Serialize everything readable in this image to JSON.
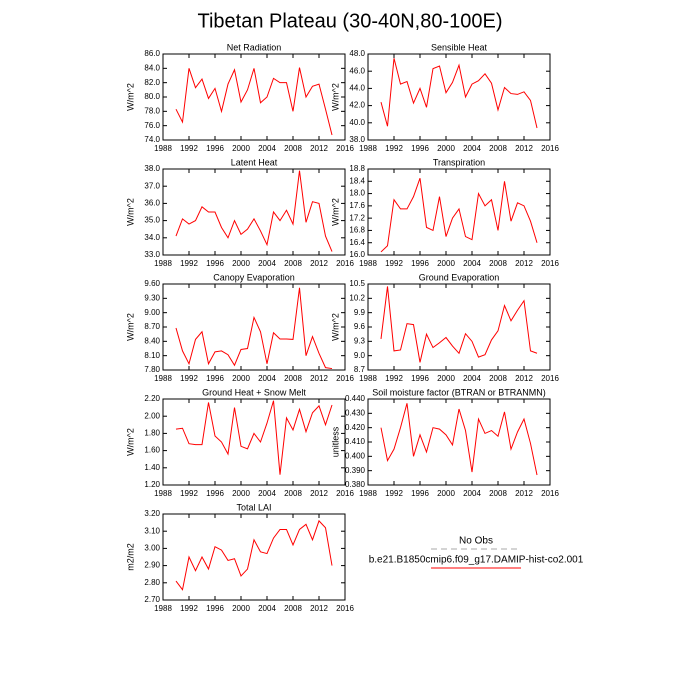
{
  "title": "Tibetan Plateau (30-40N,80-100E)",
  "legend": {
    "entries": [
      {
        "name": "No Obs",
        "color": "#aaaaaa",
        "dash": true
      },
      {
        "name": "b.e21.B1850cmip6.f09_g17.DAMIP-hist-co2.001",
        "color": "#ff0000",
        "dash": false
      }
    ]
  },
  "chart_data": [
    {
      "type": "line",
      "title": "Net Radiation",
      "y_label": "W/m^2",
      "color": "#ff0000",
      "x": [
        1990,
        1991,
        1992,
        1993,
        1994,
        1995,
        1996,
        1997,
        1998,
        1999,
        2000,
        2001,
        2002,
        2003,
        2004,
        2005,
        2006,
        2007,
        2008,
        2009,
        2010,
        2011,
        2012,
        2013,
        2014
      ],
      "values": [
        78.3,
        76.5,
        84,
        81.3,
        82.5,
        79.8,
        81.2,
        78,
        81.8,
        83.8,
        79.3,
        81,
        84,
        79.2,
        80,
        82.6,
        82,
        82,
        78,
        84.1,
        80,
        81.5,
        81.8,
        78.3,
        74.7
      ],
      "xlim": [
        1988,
        2016
      ],
      "xticks": [
        1988,
        1992,
        1996,
        2000,
        2004,
        2008,
        2012,
        2016
      ],
      "ylim": [
        74,
        86
      ],
      "yticks": [
        {
          "value": 74,
          "label": "74.0"
        },
        {
          "value": 76,
          "label": "76.0"
        },
        {
          "value": 78,
          "label": "78.0"
        },
        {
          "value": 80,
          "label": "80.0"
        },
        {
          "value": 82,
          "label": "82.0"
        },
        {
          "value": 84,
          "label": "84.0"
        },
        {
          "value": 86,
          "label": "86.0"
        }
      ]
    },
    {
      "type": "line",
      "title": "Sensible Heat",
      "y_label": "W/m^2",
      "color": "#ff0000",
      "x": [
        1990,
        1991,
        1992,
        1993,
        1994,
        1995,
        1996,
        1997,
        1998,
        1999,
        2000,
        2001,
        2002,
        2003,
        2004,
        2005,
        2006,
        2007,
        2008,
        2009,
        2010,
        2011,
        2012,
        2013,
        2014
      ],
      "values": [
        42.4,
        39.6,
        47.5,
        44.5,
        44.8,
        42.3,
        44,
        41.8,
        46.3,
        46.6,
        43.5,
        44.7,
        46.7,
        43,
        44.5,
        44.9,
        45.7,
        44.6,
        41.5,
        44.1,
        43.4,
        43.3,
        43.6,
        42.6,
        39.4
      ],
      "xlim": [
        1988,
        2016
      ],
      "xticks": [
        1988,
        1992,
        1996,
        2000,
        2004,
        2008,
        2012,
        2016
      ],
      "ylim": [
        38,
        48
      ],
      "yticks": [
        {
          "value": 38,
          "label": "38.0"
        },
        {
          "value": 40,
          "label": "40.0"
        },
        {
          "value": 42,
          "label": "42.0"
        },
        {
          "value": 44,
          "label": "44.0"
        },
        {
          "value": 46,
          "label": "46.0"
        },
        {
          "value": 48,
          "label": "48.0"
        }
      ]
    },
    {
      "type": "line",
      "title": "Latent Heat",
      "y_label": "W/m^2",
      "color": "#ff0000",
      "x": [
        1990,
        1991,
        1992,
        1993,
        1994,
        1995,
        1996,
        1997,
        1998,
        1999,
        2000,
        2001,
        2002,
        2003,
        2004,
        2005,
        2006,
        2007,
        2008,
        2009,
        2010,
        2011,
        2012,
        2013,
        2014
      ],
      "values": [
        34.1,
        35.1,
        34.8,
        35,
        35.8,
        35.5,
        35.5,
        34.6,
        34,
        35,
        34.2,
        34.5,
        35.1,
        34.4,
        33.6,
        35.5,
        35,
        35.6,
        34.8,
        37.9,
        34.9,
        36.1,
        36,
        34.1,
        33.2
      ],
      "xlim": [
        1988,
        2016
      ],
      "xticks": [
        1988,
        1992,
        1996,
        2000,
        2004,
        2008,
        2012,
        2016
      ],
      "ylim": [
        33,
        38
      ],
      "yticks": [
        {
          "value": 33,
          "label": "33.0"
        },
        {
          "value": 34,
          "label": "34.0"
        },
        {
          "value": 35,
          "label": "35.0"
        },
        {
          "value": 36,
          "label": "36.0"
        },
        {
          "value": 37,
          "label": "37.0"
        },
        {
          "value": 38,
          "label": "38.0"
        }
      ]
    },
    {
      "type": "line",
      "title": "Transpiration",
      "y_label": "W/m^2",
      "color": "#ff0000",
      "x": [
        1990,
        1991,
        1992,
        1993,
        1994,
        1995,
        1996,
        1997,
        1998,
        1999,
        2000,
        2001,
        2002,
        2003,
        2004,
        2005,
        2006,
        2007,
        2008,
        2009,
        2010,
        2011,
        2012,
        2013,
        2014
      ],
      "values": [
        16.1,
        16.3,
        17.8,
        17.5,
        17.5,
        17.9,
        18.5,
        16.9,
        16.8,
        17.9,
        16.6,
        17.2,
        17.5,
        16.6,
        16.5,
        18,
        17.6,
        17.8,
        16.8,
        18.4,
        17.1,
        17.7,
        17.6,
        17.1,
        16.4
      ],
      "xlim": [
        1988,
        2016
      ],
      "xticks": [
        1988,
        1992,
        1996,
        2000,
        2004,
        2008,
        2012,
        2016
      ],
      "ylim": [
        16,
        18.8
      ],
      "yticks": [
        {
          "value": 16,
          "label": "16.0"
        },
        {
          "value": 16.4,
          "label": "16.4"
        },
        {
          "value": 16.8,
          "label": "16.8"
        },
        {
          "value": 17.2,
          "label": "17.2"
        },
        {
          "value": 17.6,
          "label": "17.6"
        },
        {
          "value": 18,
          "label": "18.0"
        },
        {
          "value": 18.4,
          "label": "18.4"
        },
        {
          "value": 18.8,
          "label": "18.8"
        }
      ]
    },
    {
      "type": "line",
      "title": "Canopy Evaporation",
      "y_label": "W/m^2",
      "color": "#ff0000",
      "x": [
        1990,
        1991,
        1992,
        1993,
        1994,
        1995,
        1996,
        1997,
        1998,
        1999,
        2000,
        2001,
        2002,
        2003,
        2004,
        2005,
        2006,
        2007,
        2008,
        2009,
        2010,
        2011,
        2012,
        2013,
        2014
      ],
      "values": [
        8.68,
        8.2,
        7.93,
        8.44,
        8.6,
        7.93,
        8.18,
        8.2,
        8.12,
        7.9,
        8.23,
        8.25,
        8.9,
        8.6,
        7.93,
        8.58,
        8.45,
        8.45,
        8.44,
        9.52,
        8.1,
        8.5,
        8.15,
        7.85,
        7.83
      ],
      "xlim": [
        1988,
        2016
      ],
      "xticks": [
        1988,
        1992,
        1996,
        2000,
        2004,
        2008,
        2012,
        2016
      ],
      "ylim": [
        7.8,
        9.6
      ],
      "yticks": [
        {
          "value": 7.8,
          "label": "7.80"
        },
        {
          "value": 8.1,
          "label": "8.10"
        },
        {
          "value": 8.4,
          "label": "8.40"
        },
        {
          "value": 8.7,
          "label": "8.70"
        },
        {
          "value": 9,
          "label": "9.00"
        },
        {
          "value": 9.3,
          "label": "9.30"
        },
        {
          "value": 9.6,
          "label": "9.60"
        }
      ]
    },
    {
      "type": "line",
      "title": "Ground Evaporation",
      "y_label": "W/m^2",
      "color": "#ff0000",
      "x": [
        1990,
        1991,
        1992,
        1993,
        1994,
        1995,
        1996,
        1997,
        1998,
        1999,
        2000,
        2001,
        2002,
        2003,
        2004,
        2005,
        2006,
        2007,
        2008,
        2009,
        2010,
        2011,
        2012,
        2013,
        2014
      ],
      "values": [
        9.35,
        10.45,
        9.1,
        9.12,
        9.67,
        9.65,
        8.86,
        9.45,
        9.17,
        9.27,
        9.38,
        9.2,
        9.05,
        9.46,
        9.3,
        8.97,
        9.02,
        9.33,
        9.52,
        10.05,
        9.73,
        9.95,
        10.15,
        9.1,
        9.05
      ],
      "xlim": [
        1988,
        2016
      ],
      "xticks": [
        1988,
        1992,
        1996,
        2000,
        2004,
        2008,
        2012,
        2016
      ],
      "ylim": [
        8.7,
        10.5
      ],
      "yticks": [
        8.7,
        {
          "value": 9,
          "label": "9.0"
        },
        9.3,
        9.6,
        9.9,
        10.2,
        10.5
      ]
    },
    {
      "type": "line",
      "title": "Ground Heat + Snow Melt",
      "y_label": "W/m^2",
      "color": "#ff0000",
      "x": [
        1990,
        1991,
        1992,
        1993,
        1994,
        1995,
        1996,
        1997,
        1998,
        1999,
        2000,
        2001,
        2002,
        2003,
        2004,
        2005,
        2006,
        2007,
        2008,
        2009,
        2010,
        2011,
        2012,
        2013,
        2014
      ],
      "values": [
        1.85,
        1.86,
        1.68,
        1.67,
        1.67,
        2.16,
        1.77,
        1.7,
        1.56,
        2.1,
        1.65,
        1.62,
        1.8,
        1.7,
        1.92,
        2.18,
        1.32,
        1.98,
        1.84,
        2.08,
        1.82,
        2.04,
        2.12,
        1.9,
        2.13
      ],
      "xlim": [
        1988,
        2016
      ],
      "xticks": [
        1988,
        1992,
        1996,
        2000,
        2004,
        2008,
        2012,
        2016
      ],
      "ylim": [
        1.2,
        2.2
      ],
      "yticks": [
        {
          "value": 1.2,
          "label": "1.20"
        },
        {
          "value": 1.4,
          "label": "1.40"
        },
        {
          "value": 1.6,
          "label": "1.60"
        },
        {
          "value": 1.8,
          "label": "1.80"
        },
        {
          "value": 2,
          "label": "2.00"
        },
        {
          "value": 2.2,
          "label": "2.20"
        }
      ]
    },
    {
      "type": "line",
      "title": "Soil moisture factor (BTRAN or BTRANMN)",
      "y_label": "unitless",
      "color": "#ff0000",
      "x": [
        1990,
        1991,
        1992,
        1993,
        1994,
        1995,
        1996,
        1997,
        1998,
        1999,
        2000,
        2001,
        2002,
        2003,
        2004,
        2005,
        2006,
        2007,
        2008,
        2009,
        2010,
        2011,
        2012,
        2013,
        2014
      ],
      "values": [
        0.42,
        0.397,
        0.405,
        0.42,
        0.437,
        0.4,
        0.415,
        0.403,
        0.42,
        0.419,
        0.415,
        0.408,
        0.433,
        0.418,
        0.389,
        0.426,
        0.416,
        0.418,
        0.414,
        0.431,
        0.405,
        0.417,
        0.426,
        0.409,
        0.387
      ],
      "xlim": [
        1988,
        2016
      ],
      "xticks": [
        1988,
        1992,
        1996,
        2000,
        2004,
        2008,
        2012,
        2016
      ],
      "ylim": [
        0.38,
        0.44
      ],
      "yticks": [
        {
          "value": 0.38,
          "label": "0.380"
        },
        {
          "value": 0.39,
          "label": "0.390"
        },
        {
          "value": 0.4,
          "label": "0.400"
        },
        {
          "value": 0.41,
          "label": "0.410"
        },
        {
          "value": 0.42,
          "label": "0.420"
        },
        {
          "value": 0.43,
          "label": "0.430"
        },
        {
          "value": 0.44,
          "label": "0.440"
        }
      ]
    },
    {
      "type": "line",
      "title": "Total LAI",
      "y_label": "m2/m2",
      "color": "#ff0000",
      "x": [
        1990,
        1991,
        1992,
        1993,
        1994,
        1995,
        1996,
        1997,
        1998,
        1999,
        2000,
        2001,
        2002,
        2003,
        2004,
        2005,
        2006,
        2007,
        2008,
        2009,
        2010,
        2011,
        2012,
        2013,
        2014
      ],
      "values": [
        2.81,
        2.76,
        2.95,
        2.87,
        2.95,
        2.88,
        3.01,
        2.99,
        2.93,
        2.94,
        2.84,
        2.88,
        3.05,
        2.98,
        2.97,
        3.06,
        3.11,
        3.11,
        3.02,
        3.11,
        3.14,
        3.05,
        3.16,
        3.12,
        2.9
      ],
      "xlim": [
        1988,
        2016
      ],
      "xticks": [
        1988,
        1992,
        1996,
        2000,
        2004,
        2008,
        2012,
        2016
      ],
      "ylim": [
        2.7,
        3.2
      ],
      "yticks": [
        {
          "value": 2.7,
          "label": "2.70"
        },
        {
          "value": 2.8,
          "label": "2.80"
        },
        {
          "value": 2.9,
          "label": "2.90"
        },
        {
          "value": 3,
          "label": "3.00"
        },
        {
          "value": 3.1,
          "label": "3.10"
        },
        {
          "value": 3.2,
          "label": "3.20"
        }
      ]
    }
  ]
}
